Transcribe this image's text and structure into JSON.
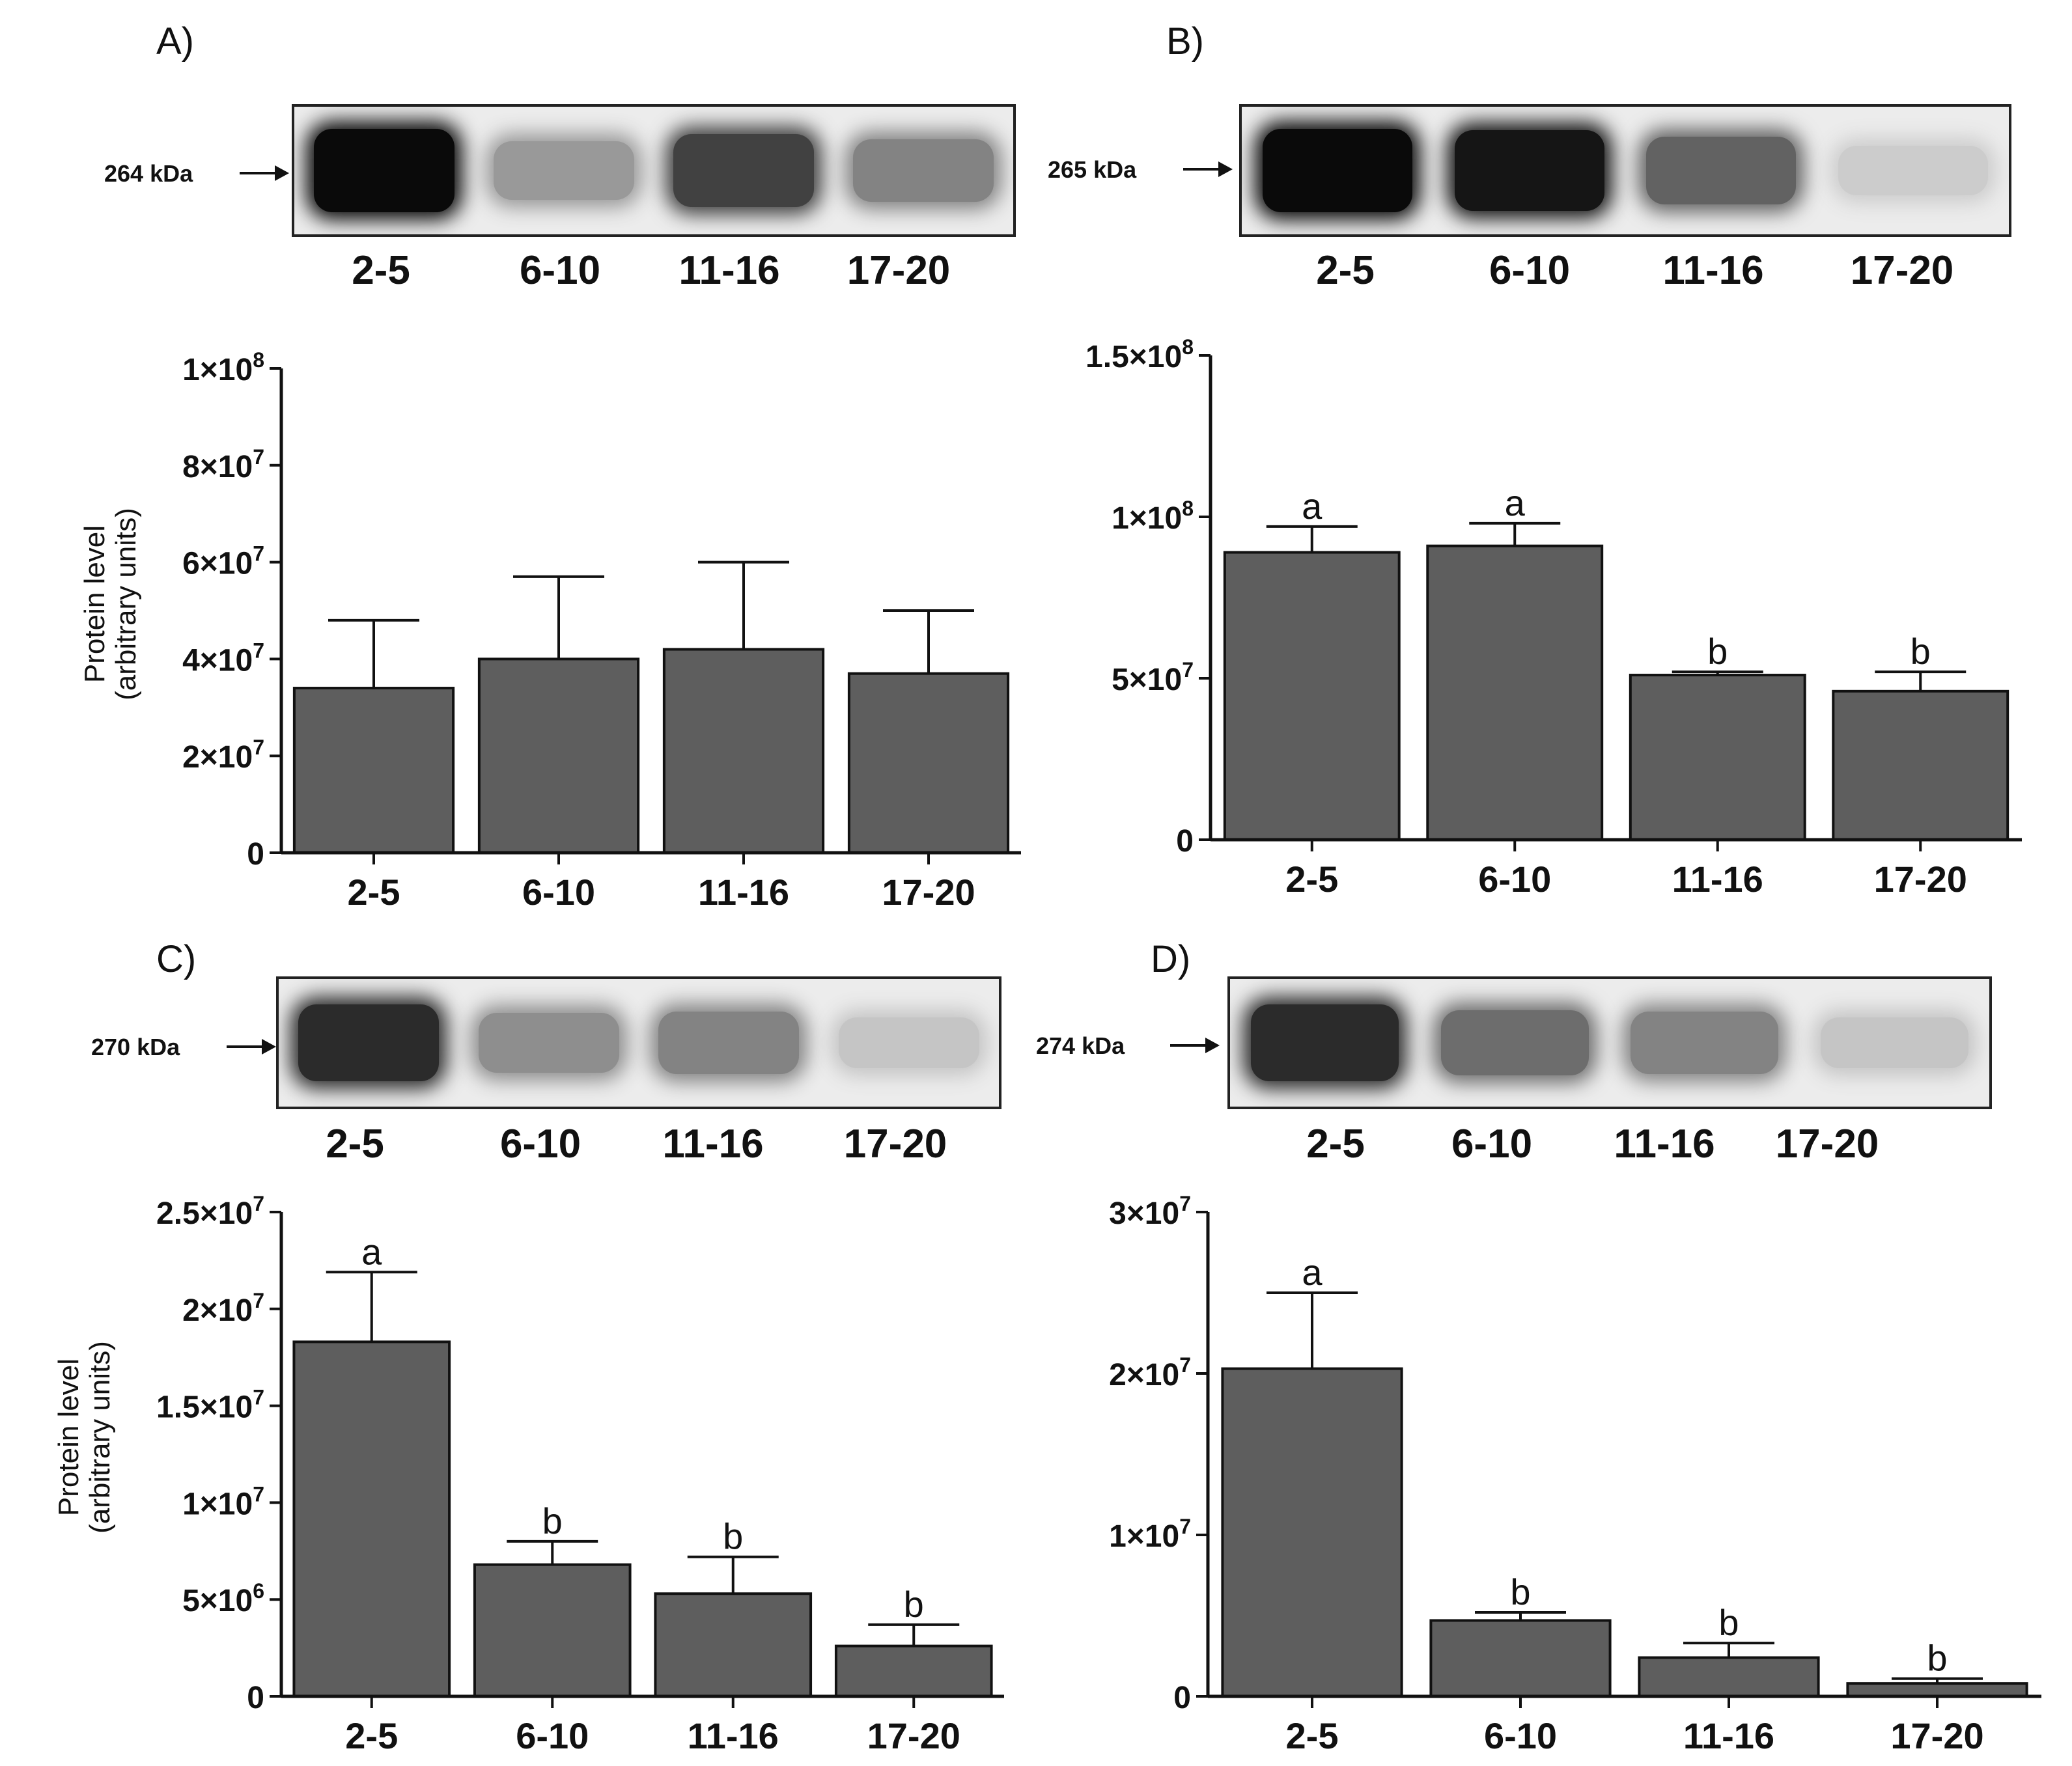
{
  "panels": [
    {
      "id": "A",
      "label": "A)",
      "blot": {
        "kda_label": "264 kDa",
        "lanes": [
          "2-5",
          "6-10",
          "11-16",
          "17-20"
        ],
        "intensity": [
          1.0,
          0.35,
          0.75,
          0.45
        ]
      },
      "ylabel_line1": "Protein level",
      "ylabel_line2": "(arbitrary units)"
    },
    {
      "id": "B",
      "label": "B)",
      "blot": {
        "kda_label": "265 kDa",
        "lanes": [
          "2-5",
          "6-10",
          "11-16",
          "17-20"
        ],
        "intensity": [
          1.0,
          0.95,
          0.6,
          0.12
        ]
      },
      "ylabel_line1": "",
      "ylabel_line2": ""
    },
    {
      "id": "C",
      "label": "C)",
      "blot": {
        "kda_label": "270 kDa",
        "lanes": [
          "2-5",
          "6-10",
          "11-16",
          "17-20"
        ],
        "intensity": [
          0.85,
          0.4,
          0.45,
          0.15
        ]
      },
      "ylabel_line1": "Protein level",
      "ylabel_line2": "(arbitrary units)"
    },
    {
      "id": "D",
      "label": "D)",
      "blot": {
        "kda_label": "274 kDa",
        "lanes": [
          "2-5",
          "6-10",
          "11-16",
          "17-20"
        ],
        "intensity": [
          0.85,
          0.55,
          0.45,
          0.15
        ]
      },
      "ylabel_line1": "",
      "ylabel_line2": ""
    }
  ],
  "colors": {
    "bar": "#5e5e5e",
    "axis": "#111111",
    "blot_bg": "#ececec"
  },
  "chart_data": [
    {
      "panel": "A",
      "type": "bar",
      "categories": [
        "2-5",
        "6-10",
        "11-16",
        "17-20"
      ],
      "values": [
        34000000,
        40000000,
        42000000,
        37000000
      ],
      "errors": [
        14000000,
        17000000,
        18000000,
        13000000
      ],
      "significance": [
        "",
        "",
        "",
        ""
      ],
      "ylim": [
        0,
        100000000
      ],
      "yticks": [
        0,
        20000000,
        40000000,
        60000000,
        80000000,
        100000000
      ],
      "ytick_labels": [
        {
          "base": "0",
          "exp": ""
        },
        {
          "base": "2×10",
          "exp": "7"
        },
        {
          "base": "4×10",
          "exp": "7"
        },
        {
          "base": "6×10",
          "exp": "7"
        },
        {
          "base": "8×10",
          "exp": "7"
        },
        {
          "base": "1×10",
          "exp": "8"
        }
      ],
      "ylabel": "Protein level (arbitrary units)",
      "xlabel": ""
    },
    {
      "panel": "B",
      "type": "bar",
      "categories": [
        "2-5",
        "6-10",
        "11-16",
        "17-20"
      ],
      "values": [
        89000000,
        91000000,
        51000000,
        46000000
      ],
      "errors": [
        8000000,
        7000000,
        1000000,
        6000000
      ],
      "significance": [
        "a",
        "a",
        "b",
        "b"
      ],
      "ylim": [
        0,
        150000000
      ],
      "yticks": [
        0,
        50000000,
        100000000,
        150000000
      ],
      "ytick_labels": [
        {
          "base": "0",
          "exp": ""
        },
        {
          "base": "5×10",
          "exp": "7"
        },
        {
          "base": "1×10",
          "exp": "8"
        },
        {
          "base": "1.5×10",
          "exp": "8"
        }
      ],
      "ylabel": "",
      "xlabel": ""
    },
    {
      "panel": "C",
      "type": "bar",
      "categories": [
        "2-5",
        "6-10",
        "11-16",
        "17-20"
      ],
      "values": [
        18300000,
        6800000,
        5300000,
        2600000
      ],
      "errors": [
        3600000,
        1200000,
        1900000,
        1100000
      ],
      "significance": [
        "a",
        "b",
        "b",
        "b"
      ],
      "ylim": [
        0,
        25000000
      ],
      "yticks": [
        0,
        5000000,
        10000000,
        15000000,
        20000000,
        25000000
      ],
      "ytick_labels": [
        {
          "base": "0",
          "exp": ""
        },
        {
          "base": "5×10",
          "exp": "6"
        },
        {
          "base": "1×10",
          "exp": "7"
        },
        {
          "base": "1.5×10",
          "exp": "7"
        },
        {
          "base": "2×10",
          "exp": "7"
        },
        {
          "base": "2.5×10",
          "exp": "7"
        }
      ],
      "ylabel": "Protein level (arbitrary units)",
      "xlabel": ""
    },
    {
      "panel": "D",
      "type": "bar",
      "categories": [
        "2-5",
        "6-10",
        "11-16",
        "17-20"
      ],
      "values": [
        20300000,
        4700000,
        2400000,
        800000
      ],
      "errors": [
        4700000,
        500000,
        900000,
        300000
      ],
      "significance": [
        "a",
        "b",
        "b",
        "b"
      ],
      "ylim": [
        0,
        30000000
      ],
      "yticks": [
        0,
        10000000,
        20000000,
        30000000
      ],
      "ytick_labels": [
        {
          "base": "0",
          "exp": ""
        },
        {
          "base": "1×10",
          "exp": "7"
        },
        {
          "base": "2×10",
          "exp": "7"
        },
        {
          "base": "3×10",
          "exp": "7"
        }
      ],
      "ylabel": "",
      "xlabel": ""
    }
  ]
}
